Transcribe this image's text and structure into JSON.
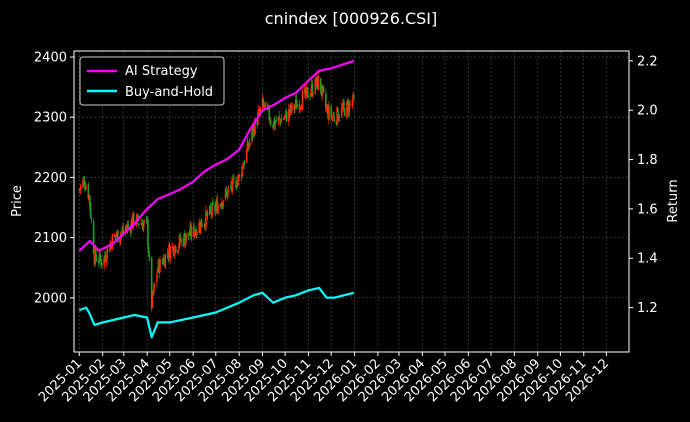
{
  "chart_data": {
    "type": "line",
    "title": "cnindex [000926.CSI]",
    "ylabel_left": "Price",
    "ylabel_right": "Return",
    "xlabel": "",
    "grid": true,
    "legend_position": "top-left",
    "background": "#000000",
    "x_ticks": [
      "2025-01",
      "2025-02",
      "2025-03",
      "2025-04",
      "2025-05",
      "2025-06",
      "2025-07",
      "2025-08",
      "2025-09",
      "2025-10",
      "2025-11",
      "2025-12",
      "2026-01",
      "2026-02",
      "2026-03",
      "2026-04",
      "2026-05",
      "2026-06",
      "2026-07",
      "2026-08",
      "2026-09",
      "2026-10",
      "2026-11",
      "2026-12"
    ],
    "x_range": [
      "2024-12-25",
      "2026-12-31"
    ],
    "y_left": {
      "range": [
        1910,
        2410
      ],
      "ticks": [
        2000,
        2100,
        2200,
        2300,
        2400
      ]
    },
    "y_right": {
      "range": [
        1.02,
        2.24
      ],
      "ticks": [
        1.2,
        1.4,
        1.6,
        1.8,
        2.0,
        2.2
      ]
    },
    "candle_colors": {
      "up": "#ff2a00",
      "down": "#1e9e1e"
    },
    "price_anchors": [
      [
        "2025-01-01",
        2180
      ],
      [
        "2025-01-08",
        2195
      ],
      [
        "2025-01-14",
        2170
      ],
      [
        "2025-01-21",
        2070
      ],
      [
        "2025-02-01",
        2060
      ],
      [
        "2025-02-15",
        2100
      ],
      [
        "2025-03-01",
        2110
      ],
      [
        "2025-03-15",
        2130
      ],
      [
        "2025-04-01",
        2120
      ],
      [
        "2025-04-07",
        1990
      ],
      [
        "2025-04-15",
        2050
      ],
      [
        "2025-05-01",
        2080
      ],
      [
        "2025-06-01",
        2110
      ],
      [
        "2025-07-01",
        2150
      ],
      [
        "2025-08-01",
        2200
      ],
      [
        "2025-08-20",
        2280
      ],
      [
        "2025-09-01",
        2320
      ],
      [
        "2025-09-15",
        2290
      ],
      [
        "2025-10-01",
        2300
      ],
      [
        "2025-10-15",
        2320
      ],
      [
        "2025-11-01",
        2340
      ],
      [
        "2025-11-15",
        2360
      ],
      [
        "2025-11-25",
        2310
      ],
      [
        "2025-12-05",
        2300
      ],
      [
        "2025-12-31",
        2325
      ]
    ],
    "series": [
      {
        "name": "AI Strategy",
        "color": "#ff00ff",
        "axis": "right",
        "points": [
          [
            "2025-01-01",
            1.43
          ],
          [
            "2025-01-15",
            1.47
          ],
          [
            "2025-01-27",
            1.43
          ],
          [
            "2025-02-15",
            1.46
          ],
          [
            "2025-03-01",
            1.5
          ],
          [
            "2025-03-15",
            1.54
          ],
          [
            "2025-04-01",
            1.6
          ],
          [
            "2025-04-15",
            1.64
          ],
          [
            "2025-05-01",
            1.66
          ],
          [
            "2025-05-15",
            1.68
          ],
          [
            "2025-06-01",
            1.71
          ],
          [
            "2025-06-15",
            1.75
          ],
          [
            "2025-07-01",
            1.78
          ],
          [
            "2025-07-15",
            1.8
          ],
          [
            "2025-08-01",
            1.84
          ],
          [
            "2025-08-15",
            1.92
          ],
          [
            "2025-09-01",
            2.0
          ],
          [
            "2025-09-15",
            2.02
          ],
          [
            "2025-10-01",
            2.05
          ],
          [
            "2025-10-15",
            2.07
          ],
          [
            "2025-11-01",
            2.12
          ],
          [
            "2025-11-15",
            2.16
          ],
          [
            "2025-12-01",
            2.17
          ],
          [
            "2025-12-31",
            2.2
          ]
        ]
      },
      {
        "name": "Buy-and-Hold",
        "color": "#00ffff",
        "axis": "right",
        "points": [
          [
            "2025-01-01",
            1.19
          ],
          [
            "2025-01-10",
            1.2
          ],
          [
            "2025-01-14",
            1.18
          ],
          [
            "2025-01-21",
            1.13
          ],
          [
            "2025-02-01",
            1.14
          ],
          [
            "2025-03-01",
            1.16
          ],
          [
            "2025-03-15",
            1.17
          ],
          [
            "2025-04-01",
            1.16
          ],
          [
            "2025-04-07",
            1.08
          ],
          [
            "2025-04-15",
            1.14
          ],
          [
            "2025-05-01",
            1.14
          ],
          [
            "2025-06-01",
            1.16
          ],
          [
            "2025-07-01",
            1.18
          ],
          [
            "2025-08-01",
            1.22
          ],
          [
            "2025-08-20",
            1.25
          ],
          [
            "2025-09-01",
            1.26
          ],
          [
            "2025-09-15",
            1.22
          ],
          [
            "2025-10-01",
            1.24
          ],
          [
            "2025-10-15",
            1.25
          ],
          [
            "2025-11-01",
            1.27
          ],
          [
            "2025-11-15",
            1.28
          ],
          [
            "2025-11-25",
            1.24
          ],
          [
            "2025-12-05",
            1.24
          ],
          [
            "2025-12-31",
            1.26
          ]
        ]
      }
    ]
  }
}
